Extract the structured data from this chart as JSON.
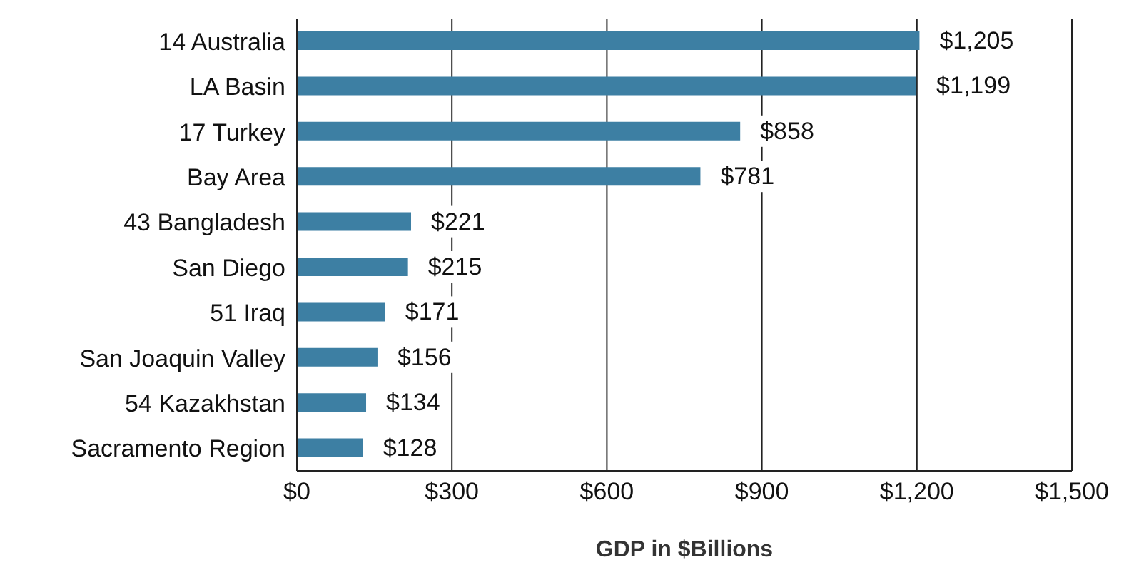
{
  "chart_data": {
    "type": "bar",
    "orientation": "horizontal",
    "xlabel": "GDP in $Billions",
    "categories": [
      "14 Australia",
      "LA Basin",
      "17 Turkey",
      "Bay Area",
      "43 Bangladesh",
      "San Diego",
      "51 Iraq",
      "San Joaquin Valley",
      "54 Kazakhstan",
      "Sacramento Region"
    ],
    "values": [
      1205,
      1199,
      858,
      781,
      221,
      215,
      171,
      156,
      134,
      128
    ],
    "value_labels": [
      "$1,205",
      "$1,199",
      "$858",
      "$781",
      "$221",
      "$215",
      "$171",
      "$156",
      "$134",
      "$128"
    ],
    "color": "#3d7fa3",
    "xlim": [
      0,
      1500
    ],
    "xticks": [
      {
        "value": 0,
        "label": "$0"
      },
      {
        "value": 300,
        "label": "$300"
      },
      {
        "value": 600,
        "label": "$600"
      },
      {
        "value": 900,
        "label": "$900"
      },
      {
        "value": 1200,
        "label": "$1,200"
      },
      {
        "value": 1500,
        "label": "$1,500"
      }
    ],
    "grid": "x"
  }
}
